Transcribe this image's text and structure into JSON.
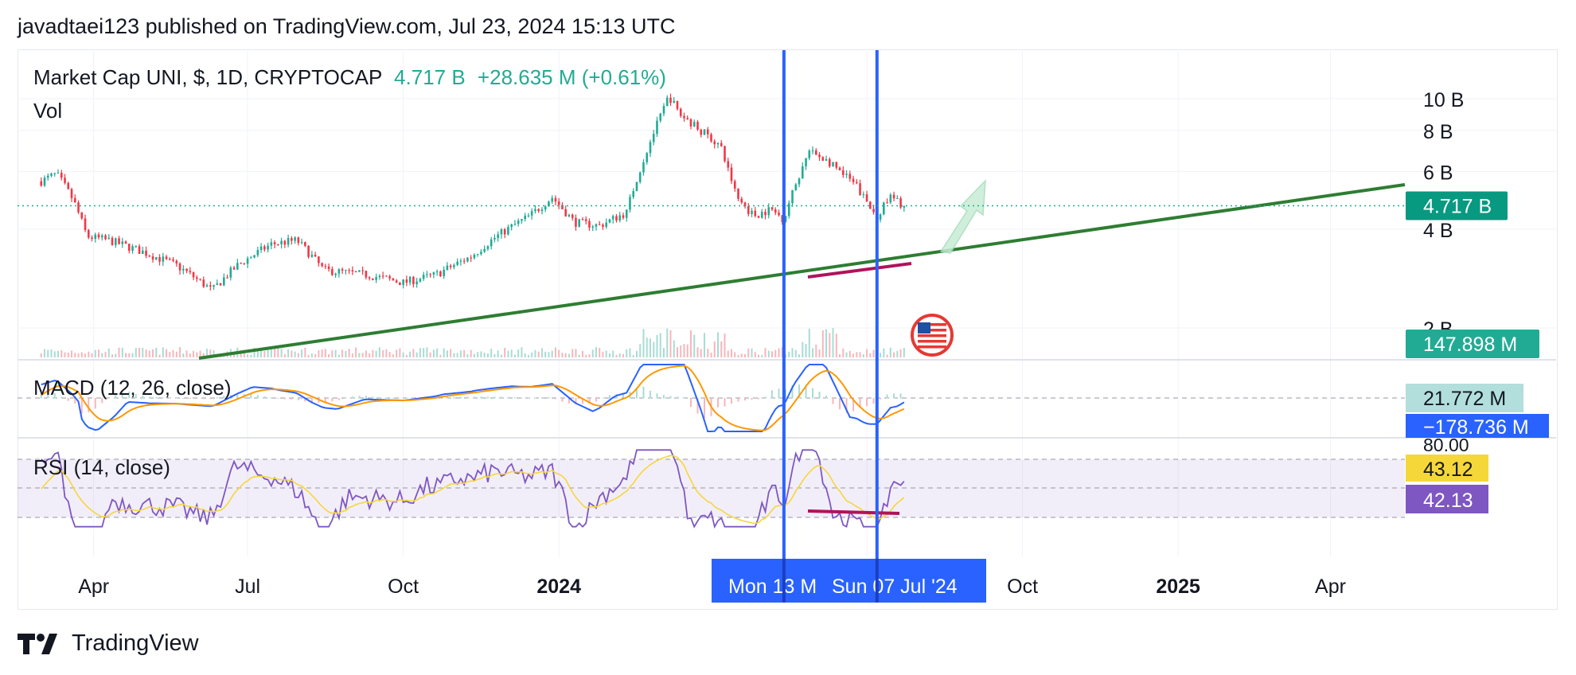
{
  "header": {
    "text": "javadtaei123 published on TradingView.com, Jul 23, 2024 15:13 UTC"
  },
  "legend": {
    "symbol": "Market Cap UNI, $, 1D, CRYPTOCAP",
    "value": "4.717 B",
    "change": "+28.635 M (+0.61%)",
    "vol": "Vol"
  },
  "indicators": {
    "macd": "MACD (12, 26, close)",
    "rsi": "RSI (14, close)"
  },
  "footer": {
    "brand": "TradingView"
  },
  "colors": {
    "up": "#22ab94",
    "down": "#f23645",
    "trendline": "#2e7d32",
    "divergence": "#b0135a",
    "vline": "#2962ff",
    "macd": "#2962ff",
    "signal": "#ff9800",
    "rsi": "#7e57c2",
    "rsi_ma": "#f5d73a"
  },
  "chart_data": {
    "type": "candlestick",
    "scale": "log",
    "y_axis": {
      "ticks": [
        "10 B",
        "8 B",
        "6 B",
        "4 B",
        "2 B"
      ],
      "last_price_badge": "4.717 B",
      "volume_badge": "147.898 M"
    },
    "x_axis": {
      "ticks": [
        "Apr",
        "Jul",
        "Oct",
        "2024",
        "Jul",
        "Oct",
        "2025",
        "Apr"
      ],
      "bold_ticks": [
        "2024",
        "2025"
      ],
      "crosshair_labels": [
        "Mon 13 M",
        "Sun 07 Jul '24"
      ]
    },
    "series": [
      {
        "name": "Market Cap UNI",
        "kind": "close",
        "points": [
          [
            "2023-03-01",
            5.6
          ],
          [
            "2023-03-10",
            5.9
          ],
          [
            "2023-03-20",
            4.9
          ],
          [
            "2023-03-28",
            3.8
          ],
          [
            "2023-04-10",
            3.7
          ],
          [
            "2023-05-01",
            3.4
          ],
          [
            "2023-05-20",
            3.1
          ],
          [
            "2023-06-10",
            2.6
          ],
          [
            "2023-06-25",
            3.1
          ],
          [
            "2023-07-15",
            3.6
          ],
          [
            "2023-07-30",
            3.7
          ],
          [
            "2023-08-15",
            3.0
          ],
          [
            "2023-09-10",
            2.9
          ],
          [
            "2023-10-01",
            2.75
          ],
          [
            "2023-10-20",
            2.9
          ],
          [
            "2023-11-10",
            3.3
          ],
          [
            "2023-11-25",
            3.8
          ],
          [
            "2023-12-15",
            4.4
          ],
          [
            "2023-12-28",
            5.0
          ],
          [
            "2024-01-10",
            4.2
          ],
          [
            "2024-01-25",
            4.1
          ],
          [
            "2024-02-10",
            4.5
          ],
          [
            "2024-02-20",
            6.5
          ],
          [
            "2024-03-01",
            8.8
          ],
          [
            "2024-03-06",
            10.2
          ],
          [
            "2024-03-12",
            9.0
          ],
          [
            "2024-03-25",
            8.0
          ],
          [
            "2024-04-05",
            7.2
          ],
          [
            "2024-04-15",
            5.0
          ],
          [
            "2024-04-25",
            4.4
          ],
          [
            "2024-05-05",
            4.6
          ],
          [
            "2024-05-13",
            4.3
          ],
          [
            "2024-05-20",
            5.5
          ],
          [
            "2024-05-28",
            6.9
          ],
          [
            "2024-06-05",
            6.6
          ],
          [
            "2024-06-15",
            6.0
          ],
          [
            "2024-06-25",
            5.4
          ],
          [
            "2024-07-02",
            4.7
          ],
          [
            "2024-07-07",
            4.4
          ],
          [
            "2024-07-15",
            5.0
          ],
          [
            "2024-07-23",
            4.717
          ]
        ]
      }
    ],
    "volume": {
      "last": "147.898 M"
    },
    "macd": {
      "params": [
        12,
        26
      ],
      "values": [
        "21.772 M",
        "−178.736 M"
      ]
    },
    "rsi": {
      "period": 14,
      "values": [
        "43.12",
        "42.13"
      ],
      "levels": [
        "80.00"
      ]
    }
  }
}
